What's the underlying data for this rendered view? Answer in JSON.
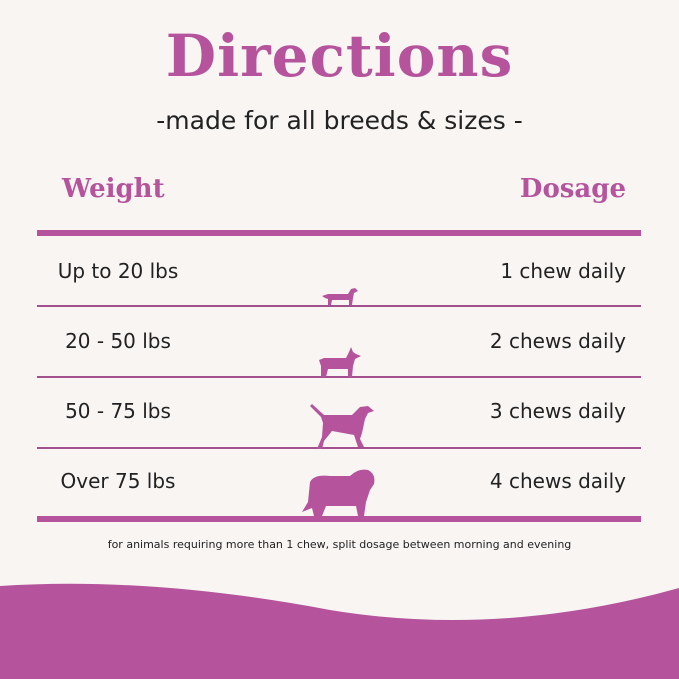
{
  "title": "Directions",
  "subtitle": "-made for all breeds & sizes -",
  "headers": {
    "weight": "Weight",
    "dosage": "Dosage"
  },
  "rows": [
    {
      "weight": "Up to 20 lbs",
      "dosage": "1 chew daily",
      "icon": "dachshund-icon"
    },
    {
      "weight": "20 - 50 lbs",
      "dosage": "2 chews daily",
      "icon": "corgi-icon"
    },
    {
      "weight": "50 - 75 lbs",
      "dosage": "3 chews daily",
      "icon": "pointer-dog-icon"
    },
    {
      "weight": "Over 75 lbs",
      "dosage": "4 chews daily",
      "icon": "shepherd-dog-icon"
    }
  ],
  "footnote": "for animals requiring more than 1 chew, split dosage between morning and evening",
  "colors": {
    "accent": "#b5549c",
    "background": "#f8f5f3"
  }
}
